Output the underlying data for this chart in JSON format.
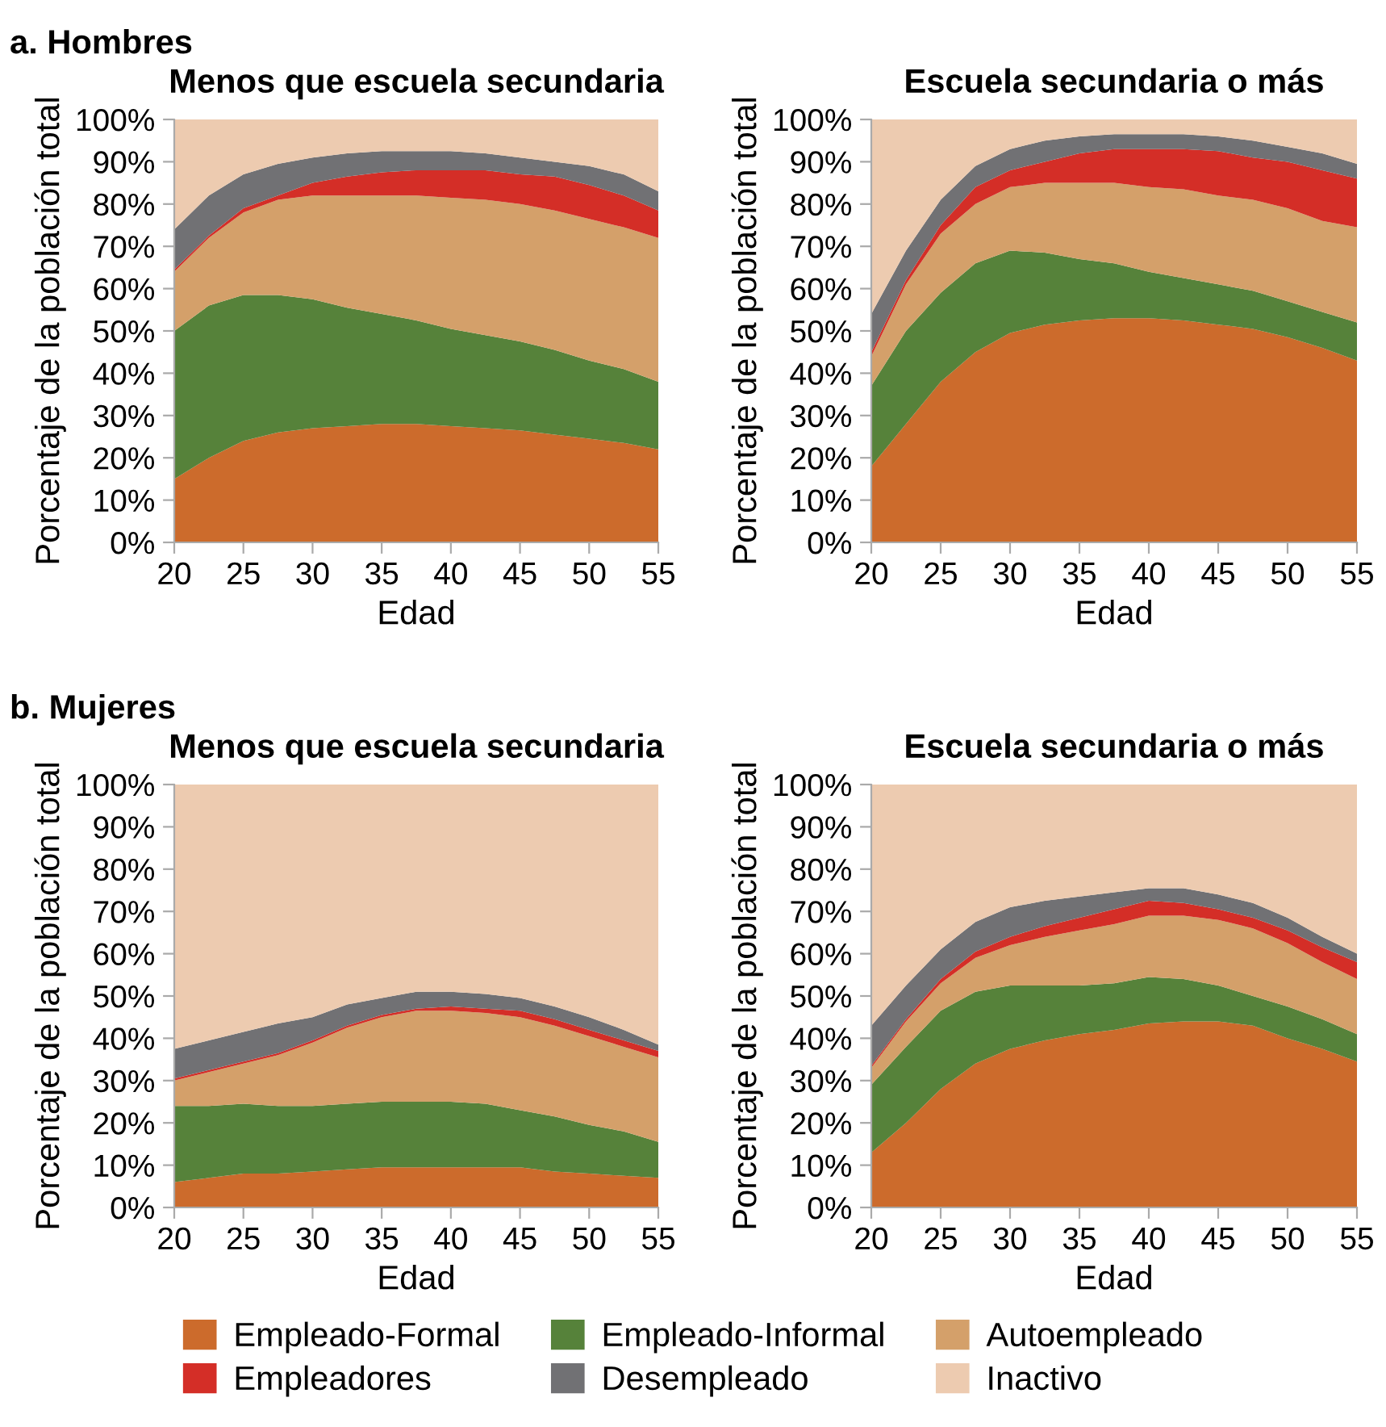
{
  "chart_data": [
    {
      "type": "area",
      "stacked": true,
      "title": "Menos que escuela secundaria",
      "xlabel": "Edad",
      "ylabel": "Porcentaje de la población total",
      "annotations": [
        "a. Hombres"
      ],
      "legend": "bottom",
      "x": [
        20,
        22.5,
        25,
        27.5,
        30,
        32.5,
        35,
        37.5,
        40,
        42.5,
        45,
        47.5,
        50,
        52.5,
        55
      ],
      "xlim": [
        20,
        55
      ],
      "xticks": [
        20,
        25,
        30,
        35,
        40,
        45,
        50,
        55
      ],
      "ylim": [
        0,
        100
      ],
      "yticks": [
        {
          "value": 0,
          "label": "0%"
        },
        {
          "value": 10,
          "label": "10%"
        },
        {
          "value": 20,
          "label": "20%"
        },
        {
          "value": 30,
          "label": "30%"
        },
        {
          "value": 40,
          "label": "40%"
        },
        {
          "value": 50,
          "label": "50%"
        },
        {
          "value": 60,
          "label": "60%"
        },
        {
          "value": 70,
          "label": "70%"
        },
        {
          "value": 80,
          "label": "80%"
        },
        {
          "value": 90,
          "label": "90%"
        },
        {
          "value": 100,
          "label": "100%"
        }
      ],
      "series": [
        {
          "name": "Empleado-Formal",
          "color": "#cc6b2c",
          "values": [
            15,
            20,
            24,
            26,
            27,
            27.5,
            28,
            28,
            27.5,
            27,
            26.5,
            25.5,
            24.5,
            23.5,
            22
          ]
        },
        {
          "name": "Empleado-Informal",
          "color": "#56823a",
          "values": [
            35,
            36,
            34.5,
            32.5,
            30.5,
            28,
            26,
            24.5,
            23,
            22,
            21,
            20,
            18.5,
            17.5,
            16
          ]
        },
        {
          "name": "Autoempleado",
          "color": "#d4a06a",
          "values": [
            14,
            16,
            19.5,
            22.5,
            24.5,
            26.5,
            28,
            29.5,
            31,
            32,
            32.5,
            33,
            33.5,
            33.5,
            34
          ]
        },
        {
          "name": "Empleadores",
          "color": "#d42e27",
          "values": [
            0.5,
            0.5,
            1,
            1,
            3,
            4.5,
            5.5,
            6,
            6.5,
            7,
            7,
            8,
            8,
            7.5,
            6.5
          ]
        },
        {
          "name": "Desempleado",
          "color": "#717174",
          "values": [
            9.5,
            9.5,
            8,
            7.5,
            6,
            5.5,
            5,
            4.5,
            4.5,
            4,
            4,
            3.5,
            4.5,
            5,
            4.5
          ]
        },
        {
          "name": "Inactivo",
          "color": "#edcbb0",
          "values": [
            26,
            18,
            13,
            10.5,
            9,
            8,
            7.5,
            7.5,
            7.5,
            8,
            9,
            10,
            11,
            13,
            17
          ]
        }
      ]
    },
    {
      "type": "area",
      "stacked": true,
      "title": "Escuela secundaria o más",
      "xlabel": "Edad",
      "ylabel": "Porcentaje de la población total",
      "x": [
        20,
        22.5,
        25,
        27.5,
        30,
        32.5,
        35,
        37.5,
        40,
        42.5,
        45,
        47.5,
        50,
        52.5,
        55
      ],
      "xlim": [
        20,
        55
      ],
      "xticks": [
        20,
        25,
        30,
        35,
        40,
        45,
        50,
        55
      ],
      "ylim": [
        0,
        100
      ],
      "yticks": [
        {
          "value": 0,
          "label": "0%"
        },
        {
          "value": 10,
          "label": "10%"
        },
        {
          "value": 20,
          "label": "20%"
        },
        {
          "value": 30,
          "label": "30%"
        },
        {
          "value": 40,
          "label": "40%"
        },
        {
          "value": 50,
          "label": "50%"
        },
        {
          "value": 60,
          "label": "60%"
        },
        {
          "value": 70,
          "label": "70%"
        },
        {
          "value": 80,
          "label": "80%"
        },
        {
          "value": 90,
          "label": "90%"
        },
        {
          "value": 100,
          "label": "100%"
        }
      ],
      "series": [
        {
          "color": "#cc6b2c",
          "values": [
            18,
            28,
            38,
            45,
            49.5,
            51.5,
            52.5,
            53,
            53,
            52.5,
            51.5,
            50.5,
            48.5,
            46,
            43
          ]
        },
        {
          "color": "#56823a",
          "values": [
            19,
            22,
            21,
            21,
            19.5,
            17,
            14.5,
            13,
            11,
            10,
            9.5,
            9,
            8.5,
            8.5,
            9
          ]
        },
        {
          "color": "#d4a06a",
          "values": [
            7,
            11,
            14,
            14,
            15,
            16.5,
            18,
            19,
            20,
            21,
            21,
            21.5,
            22,
            21.5,
            22.5
          ]
        },
        {
          "color": "#d42e27",
          "values": [
            1,
            1,
            2,
            4,
            4,
            5,
            7,
            8,
            9,
            9.5,
            10.5,
            10,
            11,
            12,
            11.5
          ]
        },
        {
          "color": "#717174",
          "values": [
            9,
            7,
            6,
            5,
            5,
            5,
            4,
            3.5,
            3.5,
            3.5,
            3.5,
            4,
            3.5,
            4,
            3.5
          ]
        },
        {
          "color": "#edcbb0",
          "values": [
            46,
            31,
            19,
            11,
            7,
            5,
            4,
            3.5,
            3.5,
            3.5,
            4,
            5,
            6.5,
            8,
            10.5
          ]
        }
      ]
    },
    {
      "type": "area",
      "stacked": true,
      "title": "Menos que escuela secundaria",
      "xlabel": "Edad",
      "ylabel": "Porcentaje de la población total",
      "annotations": [
        "b. Mujeres"
      ],
      "x": [
        20,
        22.5,
        25,
        27.5,
        30,
        32.5,
        35,
        37.5,
        40,
        42.5,
        45,
        47.5,
        50,
        52.5,
        55
      ],
      "xlim": [
        20,
        55
      ],
      "xticks": [
        20,
        25,
        30,
        35,
        40,
        45,
        50,
        55
      ],
      "ylim": [
        0,
        100
      ],
      "yticks": [
        {
          "value": 0,
          "label": "0%"
        },
        {
          "value": 10,
          "label": "10%"
        },
        {
          "value": 20,
          "label": "20%"
        },
        {
          "value": 30,
          "label": "30%"
        },
        {
          "value": 40,
          "label": "40%"
        },
        {
          "value": 50,
          "label": "50%"
        },
        {
          "value": 60,
          "label": "60%"
        },
        {
          "value": 70,
          "label": "70%"
        },
        {
          "value": 80,
          "label": "80%"
        },
        {
          "value": 90,
          "label": "90%"
        },
        {
          "value": 100,
          "label": "100%"
        }
      ],
      "series": [
        {
          "color": "#cc6b2c",
          "values": [
            6,
            7,
            8,
            8,
            8.5,
            9,
            9.5,
            9.5,
            9.5,
            9.5,
            9.5,
            8.5,
            8,
            7.5,
            7
          ]
        },
        {
          "color": "#56823a",
          "values": [
            18,
            17,
            16.5,
            16,
            15.5,
            15.5,
            15.5,
            15.5,
            15.5,
            15,
            13.5,
            13,
            11.5,
            10.5,
            8.5
          ]
        },
        {
          "color": "#d4a06a",
          "values": [
            6,
            8,
            9.5,
            12,
            15,
            18,
            20,
            21.5,
            21.5,
            21.5,
            22,
            21.5,
            21,
            20,
            20
          ]
        },
        {
          "color": "#d42e27",
          "values": [
            0.5,
            0.5,
            0.5,
            0.5,
            0.5,
            0.5,
            0.5,
            0.5,
            1,
            1,
            1.5,
            1.5,
            1.5,
            1.5,
            1.5
          ]
        },
        {
          "color": "#717174",
          "values": [
            7,
            7,
            7,
            7,
            5.5,
            5,
            4,
            4,
            3.5,
            3.5,
            3,
            3,
            3,
            2.5,
            1.5
          ]
        },
        {
          "color": "#edcbb0",
          "values": [
            62.5,
            60.5,
            58.5,
            56.5,
            55,
            52,
            50.5,
            49,
            49,
            49.5,
            50.5,
            52.5,
            55,
            58,
            61.5
          ]
        }
      ]
    },
    {
      "type": "area",
      "stacked": true,
      "title": "Escuela secundaria o más",
      "xlabel": "Edad",
      "ylabel": "Porcentaje de la población total",
      "x": [
        20,
        22.5,
        25,
        27.5,
        30,
        32.5,
        35,
        37.5,
        40,
        42.5,
        45,
        47.5,
        50,
        52.5,
        55
      ],
      "xlim": [
        20,
        55
      ],
      "xticks": [
        20,
        25,
        30,
        35,
        40,
        45,
        50,
        55
      ],
      "ylim": [
        0,
        100
      ],
      "yticks": [
        {
          "value": 0,
          "label": "0%"
        },
        {
          "value": 10,
          "label": "10%"
        },
        {
          "value": 20,
          "label": "20%"
        },
        {
          "value": 30,
          "label": "30%"
        },
        {
          "value": 40,
          "label": "40%"
        },
        {
          "value": 50,
          "label": "50%"
        },
        {
          "value": 60,
          "label": "60%"
        },
        {
          "value": 70,
          "label": "70%"
        },
        {
          "value": 80,
          "label": "80%"
        },
        {
          "value": 90,
          "label": "90%"
        },
        {
          "value": 100,
          "label": "100%"
        }
      ],
      "series": [
        {
          "color": "#cc6b2c",
          "values": [
            13,
            20,
            28,
            34,
            37.5,
            39.5,
            41,
            42,
            43.5,
            44,
            44,
            43,
            40,
            37.5,
            34.5
          ]
        },
        {
          "color": "#56823a",
          "values": [
            16,
            18,
            18.5,
            17,
            15,
            13,
            11.5,
            11,
            11,
            10,
            8.5,
            7,
            7.5,
            7,
            6.5
          ]
        },
        {
          "color": "#d4a06a",
          "values": [
            4,
            6,
            6.5,
            8,
            9.5,
            11.5,
            13,
            14,
            14.5,
            15,
            15.5,
            16,
            15,
            13.5,
            13
          ]
        },
        {
          "color": "#d42e27",
          "values": [
            0.5,
            0.5,
            1,
            1.5,
            2,
            2.5,
            3,
            3.5,
            3.5,
            3,
            2.5,
            2.5,
            3,
            3.5,
            4
          ]
        },
        {
          "color": "#717174",
          "values": [
            9.5,
            8,
            7,
            7,
            7,
            6,
            5,
            4,
            3,
            3.5,
            3.5,
            3.5,
            3,
            2.5,
            2
          ]
        },
        {
          "color": "#edcbb0",
          "values": [
            57,
            47.5,
            39,
            32.5,
            29,
            27.5,
            26.5,
            25.5,
            24.5,
            24.5,
            26,
            28,
            31.5,
            36,
            40
          ]
        }
      ]
    }
  ]
}
